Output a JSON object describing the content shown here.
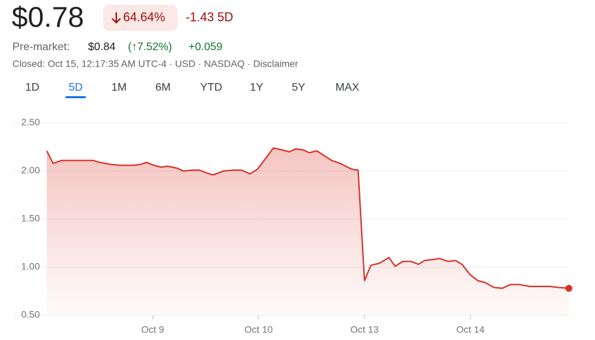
{
  "header": {
    "price": "$0.78",
    "change_percent": "64.64%",
    "change_period": "-1.43 5D",
    "premarket_label": "Pre-market:",
    "premarket_price": "$0.84",
    "premarket_percent": "(↑7.52%)",
    "premarket_change": "+0.059",
    "status": "Closed: Oct 15, 12:17:35 AM UTC-4 · USD · NASDAQ · Disclaimer"
  },
  "tabs": [
    "1D",
    "5D",
    "1M",
    "6M",
    "YTD",
    "1Y",
    "5Y",
    "MAX"
  ],
  "selected_tab": 1,
  "chart_data": {
    "type": "area",
    "x": [
      0,
      0.06,
      0.14,
      0.21,
      0.27,
      0.44,
      0.5,
      0.6,
      0.69,
      0.82,
      0.89,
      0.94,
      1.01,
      1.08,
      1.14,
      1.23,
      1.29,
      1.38,
      1.44,
      1.51,
      1.57,
      1.67,
      1.77,
      1.84,
      1.92,
      1.99,
      2.08,
      2.14,
      2.22,
      2.29,
      2.35,
      2.42,
      2.48,
      2.55,
      2.62,
      2.69,
      2.77,
      2.84,
      2.88,
      2.94,
      3.0,
      3.06,
      3.14,
      3.23,
      3.29,
      3.36,
      3.44,
      3.51,
      3.57,
      3.65,
      3.71,
      3.79,
      3.86,
      3.92,
      4.0,
      4.07,
      4.14,
      4.22,
      4.3,
      4.38,
      4.46,
      4.56,
      4.69,
      4.75,
      4.82,
      4.93
    ],
    "series": [
      {
        "color": "#d93025",
        "values": [
          2.21,
          2.08,
          2.11,
          2.11,
          2.11,
          2.11,
          2.09,
          2.07,
          2.06,
          2.06,
          2.07,
          2.09,
          2.06,
          2.04,
          2.05,
          2.03,
          2.0,
          2.01,
          2.01,
          1.98,
          1.96,
          2.0,
          2.01,
          2.01,
          1.97,
          2.02,
          2.15,
          2.24,
          2.22,
          2.2,
          2.23,
          2.22,
          2.19,
          2.21,
          2.16,
          2.11,
          2.08,
          2.04,
          2.02,
          2.01,
          0.86,
          1.02,
          1.04,
          1.1,
          1.01,
          1.06,
          1.06,
          1.03,
          1.07,
          1.08,
          1.09,
          1.06,
          1.07,
          1.03,
          0.92,
          0.86,
          0.84,
          0.79,
          0.78,
          0.82,
          0.82,
          0.8,
          0.8,
          0.8,
          0.79,
          0.78
        ]
      }
    ],
    "xlim": [
      0,
      4.93
    ],
    "xticks": [
      {
        "value": 1,
        "label": "Oct 9"
      },
      {
        "value": 2,
        "label": "Oct 10"
      },
      {
        "value": 3,
        "label": "Oct 13"
      },
      {
        "value": 4,
        "label": "Oct 14"
      }
    ],
    "ylim": [
      0.5,
      2.5
    ],
    "yticks": [
      {
        "value": 0.5,
        "label": "0.50"
      },
      {
        "value": 1.0,
        "label": "1.00"
      },
      {
        "value": 1.5,
        "label": "1.50"
      },
      {
        "value": 2.0,
        "label": "2.00"
      },
      {
        "value": 2.5,
        "label": "2.50"
      }
    ],
    "grid": true
  }
}
